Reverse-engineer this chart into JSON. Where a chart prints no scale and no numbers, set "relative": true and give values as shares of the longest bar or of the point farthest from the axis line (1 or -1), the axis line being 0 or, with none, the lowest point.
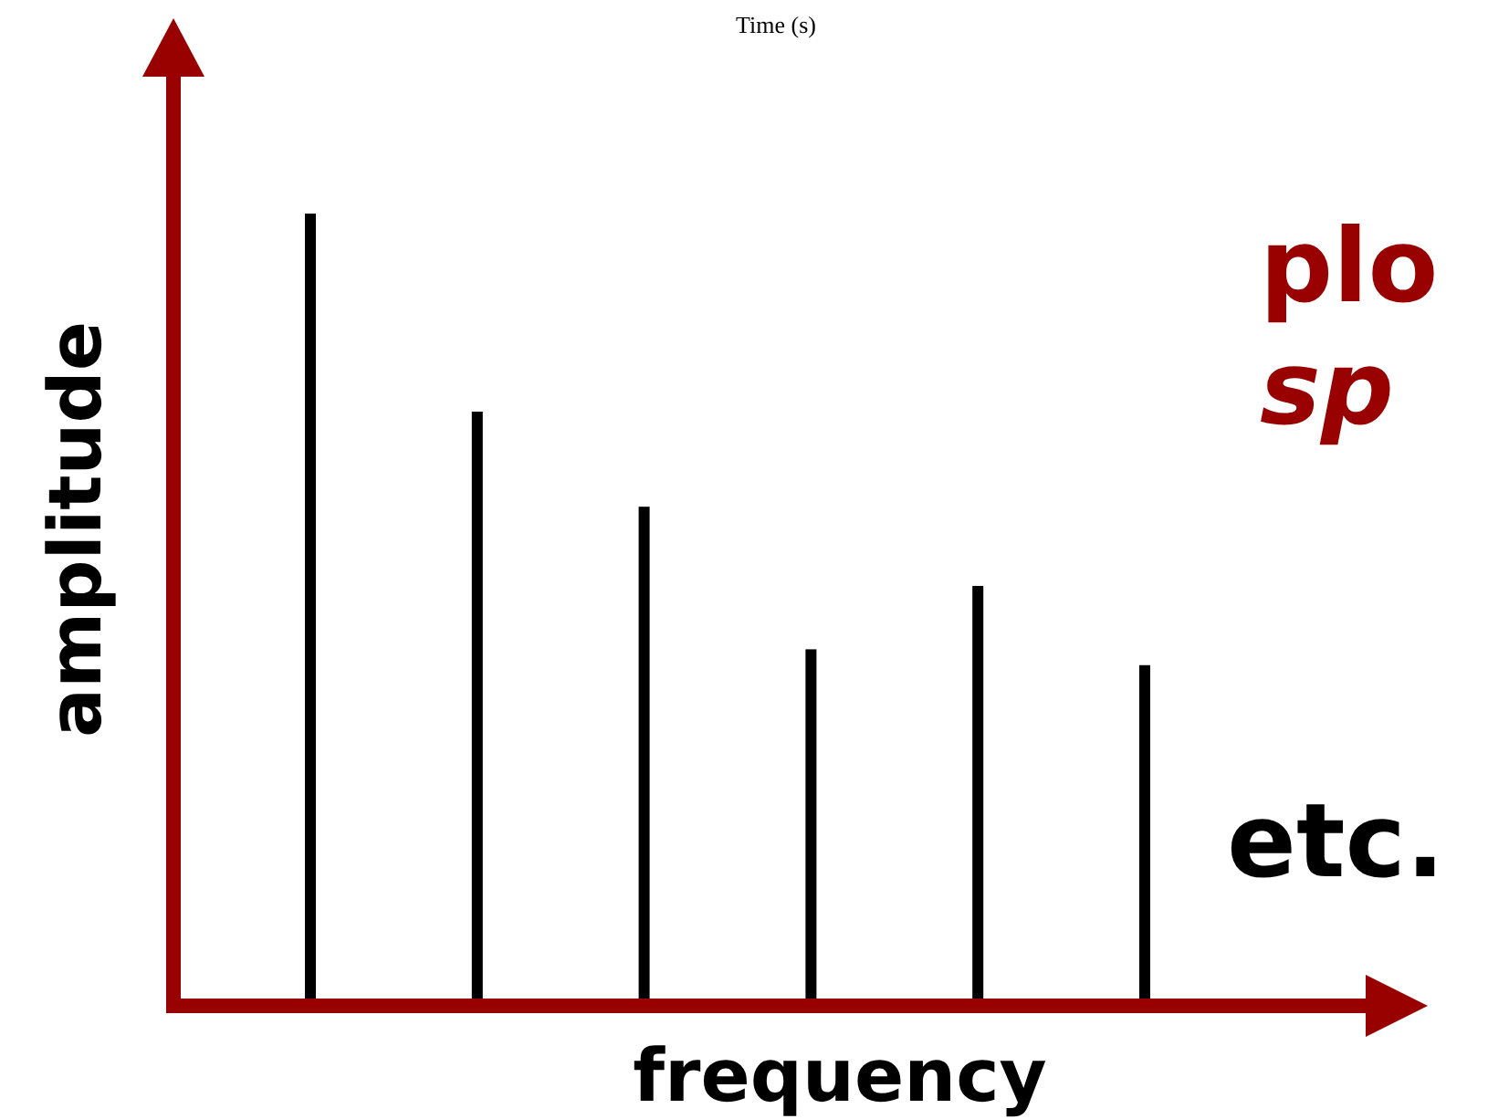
{
  "chart_data": {
    "type": "bar",
    "title": "Time (s)",
    "xlabel": "frequency",
    "ylabel": "amplitude",
    "relative": true,
    "categories": [
      null,
      null,
      null,
      null,
      null,
      null
    ],
    "values": [
      1,
      0.75,
      0.63,
      0.45,
      0.53,
      0.43
    ],
    "color": "#000000",
    "annotations": [
      "plo",
      "sp",
      "etc."
    ]
  }
}
